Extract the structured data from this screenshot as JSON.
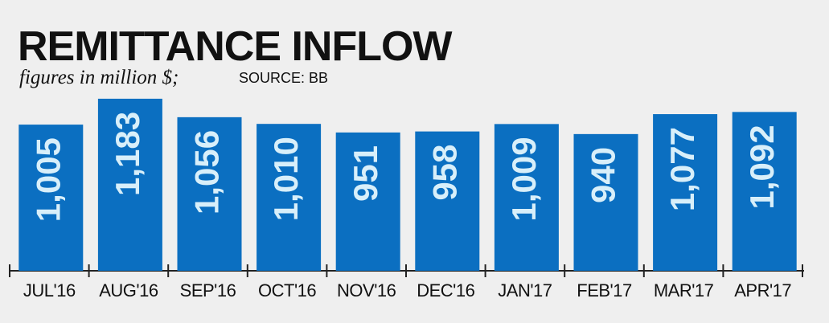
{
  "chart_data": {
    "type": "bar",
    "title": "REMITTANCE INFLOW",
    "subtitle": "figures in million $;",
    "source": "SOURCE: BB",
    "categories": [
      "JUL'16",
      "AUG'16",
      "SEP'16",
      "OCT'16",
      "NOV'16",
      "DEC'16",
      "JAN'17",
      "FEB'17",
      "MAR'17",
      "APR'17"
    ],
    "values": [
      1005,
      1183,
      1056,
      1010,
      951,
      958,
      1009,
      940,
      1077,
      1092
    ],
    "value_labels": [
      "1,005",
      "1,183",
      "1,056",
      "1,010",
      "951",
      "958",
      "1,009",
      "940",
      "1,077",
      "1,092"
    ],
    "color": "#0b6fc1"
  }
}
